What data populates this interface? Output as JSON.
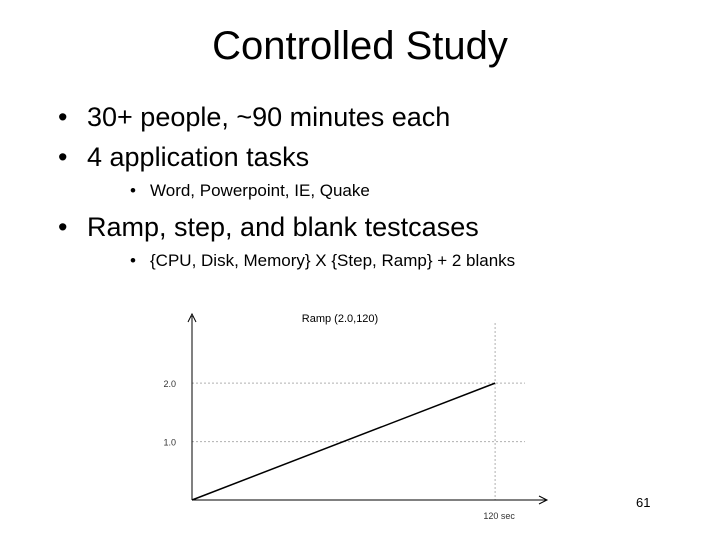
{
  "slide": {
    "title": "Controlled Study",
    "page_number": "61"
  },
  "bullets": [
    {
      "text": "30+ people, ~90 minutes each"
    },
    {
      "text": "4 application tasks",
      "sub": [
        "Word, Powerpoint, IE, Quake"
      ]
    },
    {
      "text": "Ramp, step, and blank testcases",
      "sub": [
        "{CPU, Disk, Memory} X {Step, Ramp} + 2 blanks"
      ]
    }
  ],
  "chart_data": {
    "type": "line",
    "title": "Ramp (2.0,120)",
    "xlabel": "",
    "ylabel": "",
    "x_tick_labels": [
      "120 sec"
    ],
    "y_tick_labels": [
      "1.0",
      "2.0"
    ],
    "xlim": [
      0,
      135
    ],
    "ylim": [
      0,
      3.2
    ],
    "grid": true,
    "series": [
      {
        "x": [
          0,
          120
        ],
        "y": [
          0,
          2.0
        ]
      }
    ],
    "colors": {
      "line": "#000000",
      "grid": "#b0b0b0",
      "axis": "#000000"
    }
  }
}
